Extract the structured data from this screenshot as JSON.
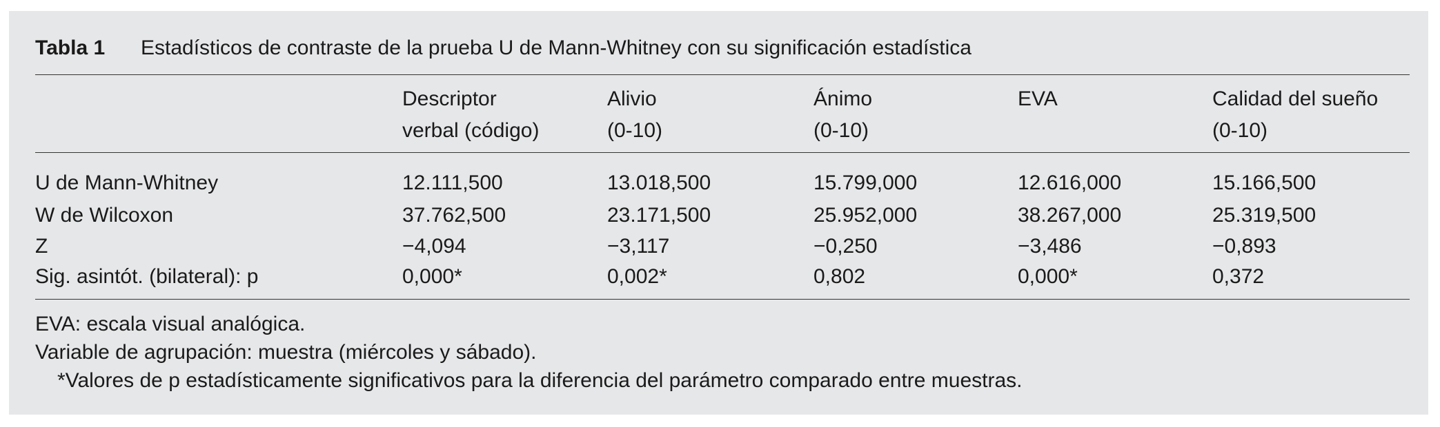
{
  "header": {
    "label": "Tabla 1",
    "title": "Estadísticos de contraste de la prueba U de Mann-Whitney con su significación estadística"
  },
  "table": {
    "columns": [
      [
        "Descriptor",
        "verbal (código)"
      ],
      [
        "Alivio",
        "(0-10)"
      ],
      [
        "Ánimo",
        "(0-10)"
      ],
      [
        "EVA"
      ],
      [
        "Calidad del sueño",
        "(0-10)"
      ]
    ],
    "rows": [
      [
        "U de Mann-Whitney",
        "12.111,500",
        "13.018,500",
        "15.799,000",
        "12.616,000",
        "15.166,500"
      ],
      [
        "W de Wilcoxon",
        "37.762,500",
        "23.171,500",
        "25.952,000",
        "38.267,000",
        "25.319,500"
      ],
      [
        "Z",
        "−4,094",
        "−3,117",
        "−0,250",
        "−3,486",
        "−0,893"
      ],
      [
        "Sig. asintót. (bilateral): p",
        "0,000*",
        "0,002*",
        "0,802",
        "0,000*",
        "0,372"
      ]
    ]
  },
  "notes": [
    "EVA: escala visual analógica.",
    "Variable de agrupación: muestra (miércoles y sábado).",
    "*Valores de p estadísticamente significativos para la diferencia del parámetro comparado entre muestras."
  ]
}
